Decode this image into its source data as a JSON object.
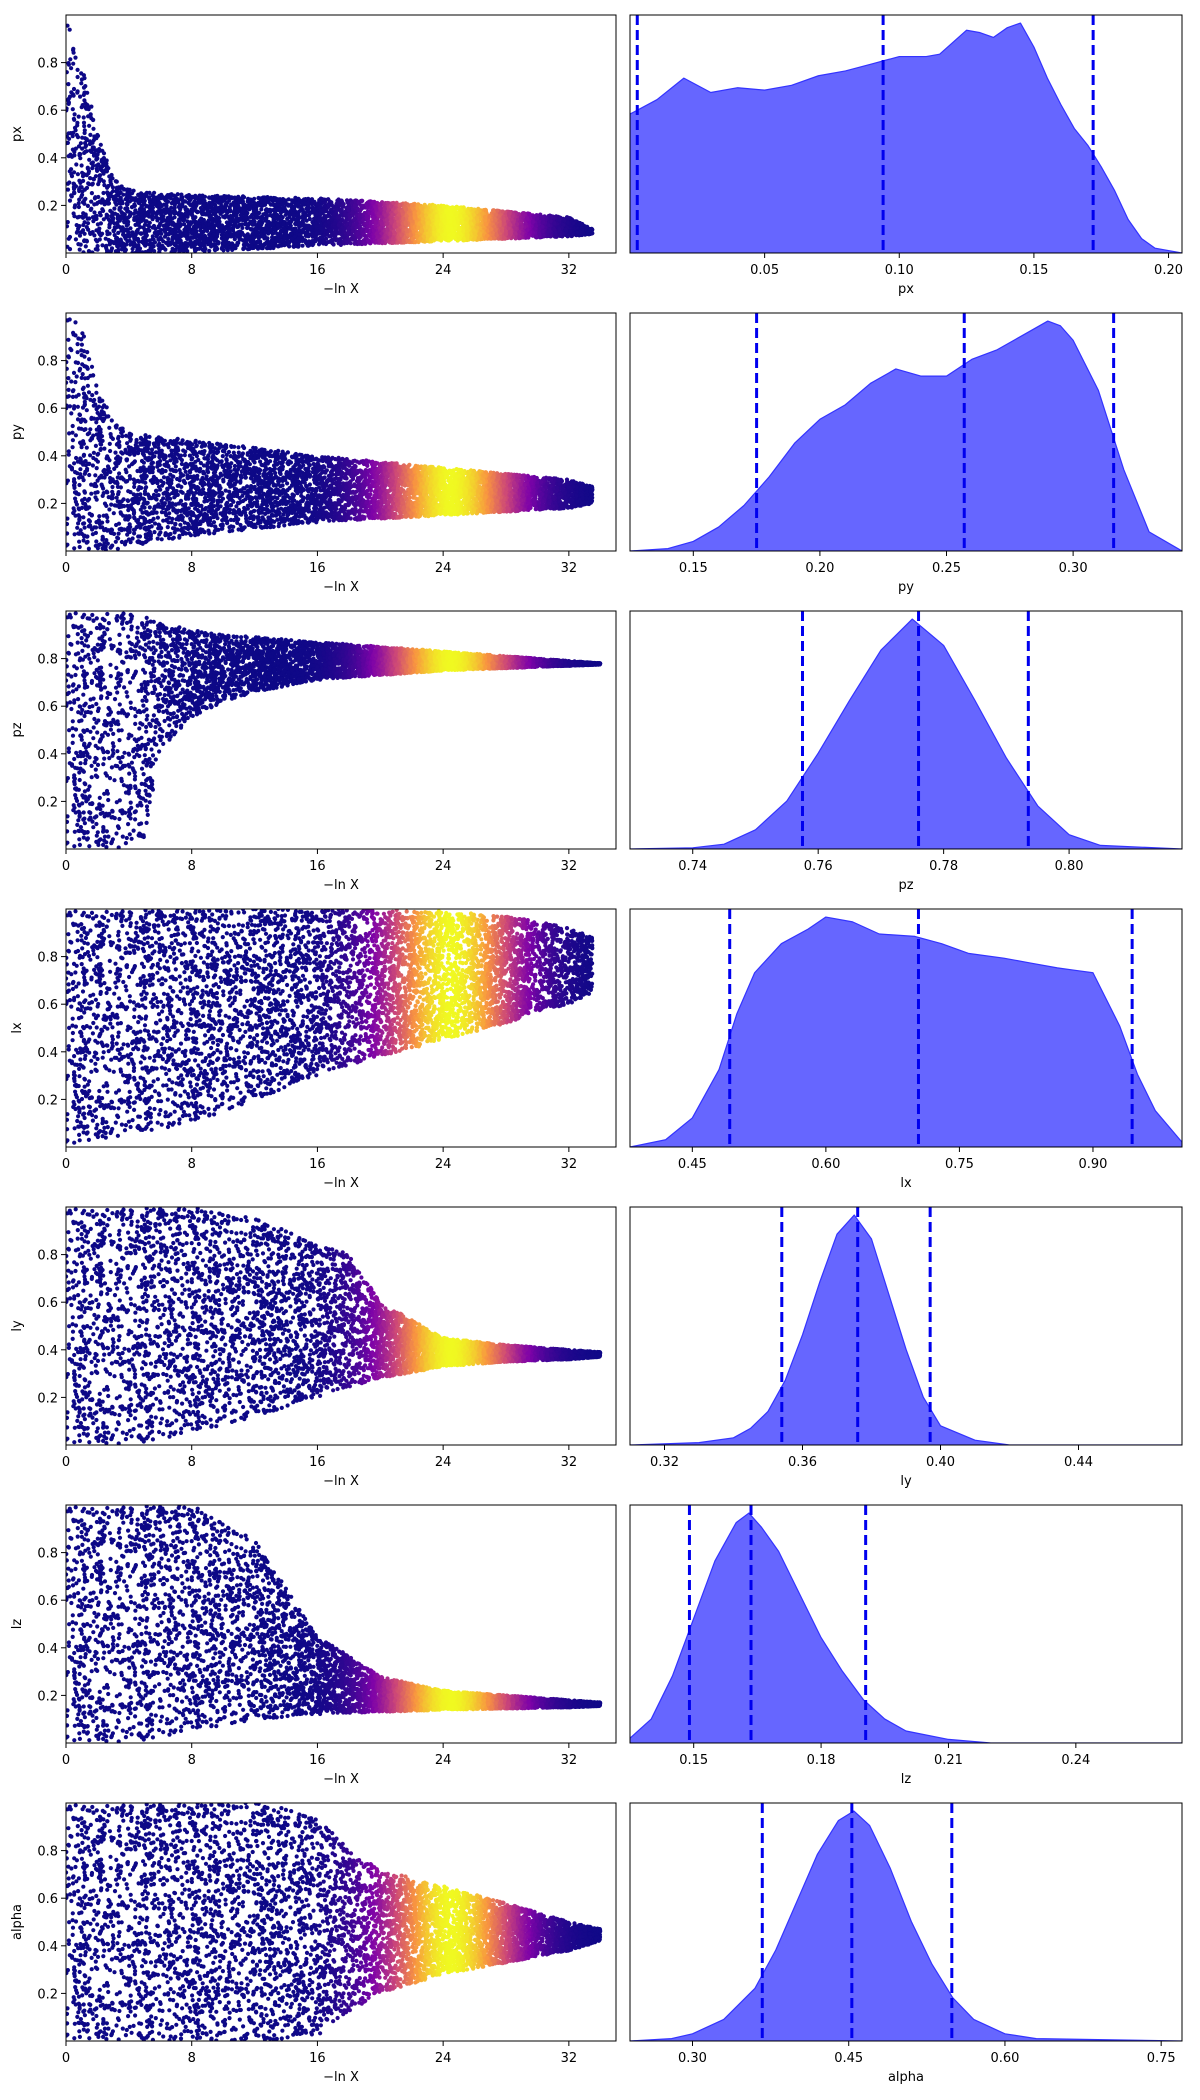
{
  "figure": {
    "colors": {
      "density_fill": "#6666ff",
      "density_edge": "#3333ff",
      "quantile_line": "#0000ee",
      "trace_colormap": [
        "#0d0887",
        "#7e03a8",
        "#cc4778",
        "#f89540",
        "#f0f921"
      ]
    }
  },
  "chart_data": [
    {
      "type": "scatter",
      "param": "px",
      "xlabel": "−ln X",
      "ylabel": "px",
      "xlim": [
        0,
        35
      ],
      "ylim": [
        0,
        1
      ],
      "xticks": [
        0,
        8,
        16,
        24,
        32
      ],
      "yticks": [
        0.2,
        0.4,
        0.6,
        0.8
      ],
      "envelope": {
        "x": [
          0,
          1,
          2,
          3,
          4,
          6,
          10,
          16,
          24,
          32,
          33.5
        ],
        "lower": [
          0,
          0,
          0,
          0,
          0,
          0,
          0.01,
          0.03,
          0.05,
          0.07,
          0.08
        ],
        "upper": [
          1,
          0.8,
          0.5,
          0.32,
          0.27,
          0.25,
          0.24,
          0.23,
          0.2,
          0.15,
          0.1
        ]
      },
      "peak_x": 24.5,
      "peak_width": 3.0
    },
    {
      "type": "area",
      "param": "px",
      "xlabel": "px",
      "xlim": [
        0.0,
        0.205
      ],
      "xticks": [
        0.05,
        0.1,
        0.15,
        0.2
      ],
      "density": {
        "x": [
          0.0,
          0.01,
          0.02,
          0.03,
          0.04,
          0.05,
          0.06,
          0.07,
          0.08,
          0.09,
          0.1,
          0.11,
          0.115,
          0.12,
          0.125,
          0.13,
          0.135,
          0.14,
          0.145,
          0.15,
          0.155,
          0.16,
          0.165,
          0.17,
          0.175,
          0.18,
          0.185,
          0.19,
          0.195,
          0.205
        ],
        "y": [
          0.58,
          0.64,
          0.73,
          0.67,
          0.69,
          0.68,
          0.7,
          0.74,
          0.76,
          0.79,
          0.82,
          0.82,
          0.83,
          0.88,
          0.93,
          0.92,
          0.9,
          0.94,
          0.96,
          0.86,
          0.73,
          0.62,
          0.52,
          0.45,
          0.36,
          0.26,
          0.14,
          0.06,
          0.02,
          0.0
        ]
      },
      "quantiles": [
        0.0027,
        0.094,
        0.172
      ]
    },
    {
      "type": "scatter",
      "param": "py",
      "xlabel": "−ln X",
      "ylabel": "py",
      "xlim": [
        0,
        35
      ],
      "ylim": [
        0,
        1
      ],
      "xticks": [
        0,
        8,
        16,
        24,
        32
      ],
      "yticks": [
        0.2,
        0.4,
        0.6,
        0.8
      ],
      "envelope": {
        "x": [
          0,
          1,
          2,
          3,
          4,
          6,
          10,
          16,
          24,
          32,
          33.5
        ],
        "lower": [
          0,
          0,
          0,
          0,
          0.02,
          0.04,
          0.08,
          0.12,
          0.15,
          0.18,
          0.2
        ],
        "upper": [
          1,
          0.95,
          0.7,
          0.55,
          0.5,
          0.48,
          0.45,
          0.4,
          0.35,
          0.3,
          0.27
        ]
      },
      "peak_x": 24.5,
      "peak_width": 3.0
    },
    {
      "type": "area",
      "param": "py",
      "xlabel": "py",
      "xlim": [
        0.125,
        0.343
      ],
      "xticks": [
        0.15,
        0.2,
        0.25,
        0.3
      ],
      "density": {
        "x": [
          0.125,
          0.14,
          0.15,
          0.16,
          0.17,
          0.18,
          0.19,
          0.2,
          0.21,
          0.22,
          0.23,
          0.24,
          0.25,
          0.26,
          0.27,
          0.28,
          0.29,
          0.295,
          0.3,
          0.31,
          0.32,
          0.33,
          0.343
        ],
        "y": [
          0.0,
          0.01,
          0.04,
          0.1,
          0.19,
          0.31,
          0.45,
          0.55,
          0.61,
          0.7,
          0.76,
          0.73,
          0.73,
          0.8,
          0.84,
          0.9,
          0.96,
          0.94,
          0.88,
          0.67,
          0.34,
          0.08,
          0.0
        ]
      },
      "quantiles": [
        0.175,
        0.257,
        0.316
      ]
    },
    {
      "type": "scatter",
      "param": "pz",
      "xlabel": "−ln X",
      "ylabel": "pz",
      "xlim": [
        0,
        35
      ],
      "ylim": [
        0,
        1
      ],
      "xticks": [
        0,
        8,
        16,
        24,
        32
      ],
      "yticks": [
        0.2,
        0.4,
        0.6,
        0.8
      ],
      "envelope": {
        "x": [
          0,
          2,
          4,
          5,
          6,
          8,
          10,
          12,
          16,
          24,
          32,
          34
        ],
        "lower": [
          0,
          0,
          0,
          0.05,
          0.42,
          0.55,
          0.62,
          0.66,
          0.71,
          0.75,
          0.77,
          0.775
        ],
        "upper": [
          1,
          1,
          1,
          0.98,
          0.95,
          0.92,
          0.9,
          0.89,
          0.87,
          0.83,
          0.79,
          0.78
        ]
      },
      "peak_x": 24.5,
      "peak_width": 3.0
    },
    {
      "type": "area",
      "param": "pz",
      "xlabel": "pz",
      "xlim": [
        0.73,
        0.818
      ],
      "xticks": [
        0.74,
        0.76,
        0.78,
        0.8
      ],
      "density": {
        "x": [
          0.73,
          0.74,
          0.745,
          0.75,
          0.755,
          0.76,
          0.765,
          0.77,
          0.775,
          0.78,
          0.785,
          0.79,
          0.795,
          0.8,
          0.805,
          0.818
        ],
        "y": [
          0.0,
          0.005,
          0.02,
          0.08,
          0.2,
          0.4,
          0.62,
          0.83,
          0.96,
          0.85,
          0.62,
          0.38,
          0.18,
          0.06,
          0.015,
          0.0
        ]
      },
      "quantiles": [
        0.7575,
        0.776,
        0.7935
      ]
    },
    {
      "type": "scatter",
      "param": "lx",
      "xlabel": "−ln X",
      "ylabel": "lx",
      "xlim": [
        0,
        35
      ],
      "ylim": [
        0,
        1
      ],
      "xticks": [
        0,
        8,
        16,
        24,
        32
      ],
      "yticks": [
        0.2,
        0.4,
        0.6,
        0.8
      ],
      "envelope": {
        "x": [
          0,
          4,
          8,
          12,
          16,
          20,
          24,
          28,
          30,
          32,
          33.5
        ],
        "lower": [
          0,
          0.05,
          0.1,
          0.2,
          0.3,
          0.38,
          0.45,
          0.52,
          0.57,
          0.6,
          0.65
        ],
        "upper": [
          1,
          1,
          1,
          1,
          1,
          1,
          0.99,
          0.97,
          0.95,
          0.92,
          0.88
        ]
      },
      "peak_x": 24.5,
      "peak_width": 3.0
    },
    {
      "type": "area",
      "param": "lx",
      "xlabel": "lx",
      "xlim": [
        0.38,
        1.0
      ],
      "xticks": [
        0.45,
        0.6,
        0.75,
        0.9
      ],
      "density": {
        "x": [
          0.38,
          0.42,
          0.45,
          0.48,
          0.5,
          0.52,
          0.55,
          0.58,
          0.6,
          0.63,
          0.66,
          0.7,
          0.73,
          0.76,
          0.8,
          0.83,
          0.86,
          0.88,
          0.9,
          0.93,
          0.95,
          0.97,
          1.0
        ],
        "y": [
          0.0,
          0.03,
          0.12,
          0.32,
          0.55,
          0.72,
          0.84,
          0.9,
          0.95,
          0.93,
          0.88,
          0.87,
          0.84,
          0.8,
          0.78,
          0.76,
          0.74,
          0.73,
          0.72,
          0.5,
          0.3,
          0.15,
          0.02
        ]
      },
      "quantiles": [
        0.492,
        0.704,
        0.944
      ]
    },
    {
      "type": "scatter",
      "param": "ly",
      "xlabel": "−ln X",
      "ylabel": "ly",
      "xlim": [
        0,
        35
      ],
      "ylim": [
        0,
        1
      ],
      "xticks": [
        0,
        8,
        16,
        24,
        32
      ],
      "yticks": [
        0.2,
        0.4,
        0.6,
        0.8
      ],
      "envelope": {
        "x": [
          0,
          4,
          8,
          12,
          16,
          18,
          20,
          24,
          28,
          32,
          34
        ],
        "lower": [
          0,
          0,
          0.05,
          0.12,
          0.2,
          0.24,
          0.28,
          0.33,
          0.35,
          0.36,
          0.37
        ],
        "upper": [
          1,
          1,
          1,
          0.95,
          0.85,
          0.8,
          0.6,
          0.45,
          0.42,
          0.4,
          0.39
        ]
      },
      "peak_x": 24.5,
      "peak_width": 3.0
    },
    {
      "type": "area",
      "param": "ly",
      "xlabel": "ly",
      "xlim": [
        0.31,
        0.47
      ],
      "xticks": [
        0.32,
        0.36,
        0.4,
        0.44
      ],
      "density": {
        "x": [
          0.31,
          0.33,
          0.34,
          0.345,
          0.35,
          0.355,
          0.36,
          0.365,
          0.37,
          0.375,
          0.38,
          0.385,
          0.39,
          0.395,
          0.4,
          0.41,
          0.42,
          0.47
        ],
        "y": [
          0.0,
          0.01,
          0.03,
          0.07,
          0.14,
          0.27,
          0.46,
          0.68,
          0.88,
          0.96,
          0.86,
          0.63,
          0.4,
          0.2,
          0.08,
          0.02,
          0.0,
          0.0
        ]
      },
      "quantiles": [
        0.354,
        0.376,
        0.397
      ]
    },
    {
      "type": "scatter",
      "param": "lz",
      "xlabel": "−ln X",
      "ylabel": "lz",
      "xlim": [
        0,
        35
      ],
      "ylim": [
        0,
        1
      ],
      "xticks": [
        0,
        8,
        16,
        24,
        32
      ],
      "yticks": [
        0.2,
        0.4,
        0.6,
        0.8
      ],
      "envelope": {
        "x": [
          0,
          4,
          8,
          12,
          16,
          20,
          24,
          28,
          32,
          34
        ],
        "lower": [
          0,
          0,
          0.05,
          0.1,
          0.12,
          0.13,
          0.14,
          0.145,
          0.15,
          0.155
        ],
        "upper": [
          1,
          1,
          1,
          0.85,
          0.45,
          0.28,
          0.22,
          0.2,
          0.18,
          0.17
        ]
      },
      "peak_x": 24.5,
      "peak_width": 3.0
    },
    {
      "type": "area",
      "param": "lz",
      "xlabel": "lz",
      "xlim": [
        0.135,
        0.265
      ],
      "xticks": [
        0.15,
        0.18,
        0.21,
        0.24
      ],
      "density": {
        "x": [
          0.135,
          0.14,
          0.145,
          0.15,
          0.155,
          0.16,
          0.163,
          0.166,
          0.17,
          0.175,
          0.18,
          0.185,
          0.19,
          0.195,
          0.2,
          0.21,
          0.22,
          0.265
        ],
        "y": [
          0.02,
          0.1,
          0.28,
          0.52,
          0.76,
          0.92,
          0.96,
          0.9,
          0.8,
          0.62,
          0.44,
          0.3,
          0.18,
          0.1,
          0.05,
          0.015,
          0.0,
          0.0
        ]
      },
      "quantiles": [
        0.149,
        0.1635,
        0.1905
      ]
    },
    {
      "type": "scatter",
      "param": "alpha",
      "xlabel": "−ln X",
      "ylabel": "alpha",
      "xlim": [
        0,
        35
      ],
      "ylim": [
        0,
        1
      ],
      "xticks": [
        0,
        8,
        16,
        24,
        32
      ],
      "yticks": [
        0.2,
        0.4,
        0.6,
        0.8
      ],
      "envelope": {
        "x": [
          0,
          8,
          12,
          16,
          18,
          20,
          24,
          28,
          32,
          34
        ],
        "lower": [
          0,
          0,
          0,
          0.02,
          0.12,
          0.2,
          0.28,
          0.33,
          0.38,
          0.42
        ],
        "upper": [
          1,
          1,
          1,
          0.95,
          0.8,
          0.72,
          0.65,
          0.58,
          0.5,
          0.47
        ]
      },
      "peak_x": 24.5,
      "peak_width": 3.0
    },
    {
      "type": "area",
      "param": "alpha",
      "xlabel": "alpha",
      "xlim": [
        0.24,
        0.77
      ],
      "xticks": [
        0.3,
        0.45,
        0.6,
        0.75
      ],
      "density": {
        "x": [
          0.24,
          0.28,
          0.3,
          0.33,
          0.36,
          0.38,
          0.4,
          0.42,
          0.44,
          0.455,
          0.47,
          0.49,
          0.51,
          0.53,
          0.55,
          0.57,
          0.6,
          0.63,
          0.77
        ],
        "y": [
          0.0,
          0.01,
          0.03,
          0.09,
          0.22,
          0.38,
          0.58,
          0.78,
          0.92,
          0.96,
          0.9,
          0.72,
          0.5,
          0.32,
          0.18,
          0.09,
          0.03,
          0.01,
          0.0
        ]
      },
      "quantiles": [
        0.367,
        0.453,
        0.549
      ]
    }
  ]
}
